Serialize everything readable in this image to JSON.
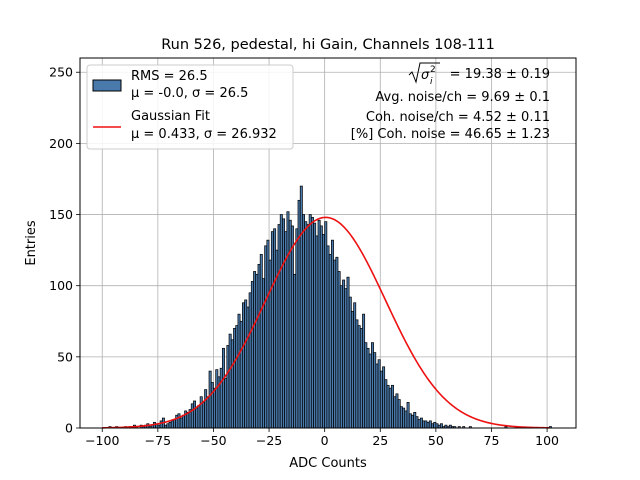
{
  "chart_data": {
    "type": "bar",
    "title": "Run 526, pedestal, hi Gain, Channels 108-111",
    "xlabel": "ADC Counts",
    "ylabel": "Entries",
    "xlim": [
      -110,
      113
    ],
    "ylim": [
      0,
      260
    ],
    "x_ticks": [
      -100,
      -75,
      -50,
      -25,
      0,
      25,
      50,
      75,
      100
    ],
    "y_ticks": [
      0,
      50,
      100,
      150,
      200,
      250
    ],
    "x_tick_labels": [
      "−100",
      "−75",
      "−50",
      "−25",
      "0",
      "25",
      "50",
      "75",
      "100"
    ],
    "y_tick_labels": [
      "0",
      "50",
      "100",
      "150",
      "200",
      "250"
    ],
    "grid": true,
    "bin_start": -97,
    "bin_width": 1,
    "series": [
      {
        "name": "RMS = 26.5",
        "kind": "histogram",
        "color": "#4a7aab",
        "edge_color": "#000000",
        "values": [
          1,
          0,
          0,
          1,
          0,
          0,
          0,
          1,
          0,
          1,
          1,
          2,
          1,
          0,
          2,
          1,
          2,
          3,
          1,
          2,
          4,
          3,
          2,
          5,
          7,
          2,
          3,
          4,
          5,
          6,
          9,
          10,
          7,
          9,
          12,
          11,
          13,
          17,
          19,
          14,
          16,
          22,
          18,
          27,
          22,
          40,
          32,
          28,
          41,
          36,
          42,
          56,
          35,
          58,
          66,
          62,
          70,
          72,
          80,
          75,
          88,
          90,
          85,
          95,
          103,
          110,
          108,
          115,
          122,
          105,
          128,
          132,
          118,
          138,
          140,
          125,
          143,
          150,
          147,
          138,
          152,
          146,
          142,
          108,
          140,
          160,
          170,
          150,
          145,
          143,
          150,
          148,
          144,
          135,
          146,
          142,
          136,
          145,
          128,
          122,
          132,
          118,
          120,
          110,
          100,
          104,
          98,
          106,
          92,
          82,
          88,
          76,
          72,
          70,
          80,
          60,
          56,
          52,
          60,
          53,
          45,
          48,
          40,
          43,
          34,
          30,
          28,
          30,
          22,
          24,
          20,
          15,
          14,
          12,
          18,
          10,
          9,
          11,
          8,
          6,
          7,
          5,
          5,
          4,
          5,
          3,
          4,
          3,
          2,
          3,
          1,
          2,
          1,
          2,
          1,
          1,
          0,
          1,
          0,
          1,
          0,
          0,
          1,
          0,
          0,
          0,
          0,
          0,
          0,
          0,
          0,
          0,
          0,
          0,
          0,
          0,
          0,
          0,
          1,
          0,
          0,
          0,
          0,
          0,
          0,
          0,
          0,
          0,
          0,
          0,
          0,
          0,
          0,
          0,
          0,
          0,
          0,
          0,
          1
        ]
      },
      {
        "name": "Gaussian Fit",
        "kind": "line",
        "color": "#ee1111",
        "mu": 0.433,
        "sigma": 26.932,
        "peak": 148
      }
    ],
    "legend": {
      "position": "top-left",
      "entries": [
        {
          "line1": "RMS = 26.5",
          "line2": "μ = -0.0, σ = 26.5"
        },
        {
          "line1": "Gaussian Fit",
          "line2": "μ = 0.433, σ = 26.932"
        }
      ]
    },
    "annotations": {
      "sqrt_sigma_value": "= 19.38 ± 0.19",
      "avg_noise": "Avg. noise/ch = 9.69 ± 0.1",
      "coh_noise": "Coh. noise/ch = 4.52 ± 0.11",
      "coh_noise_pct": "[%] Coh. noise = 46.65 ± 1.23"
    }
  }
}
